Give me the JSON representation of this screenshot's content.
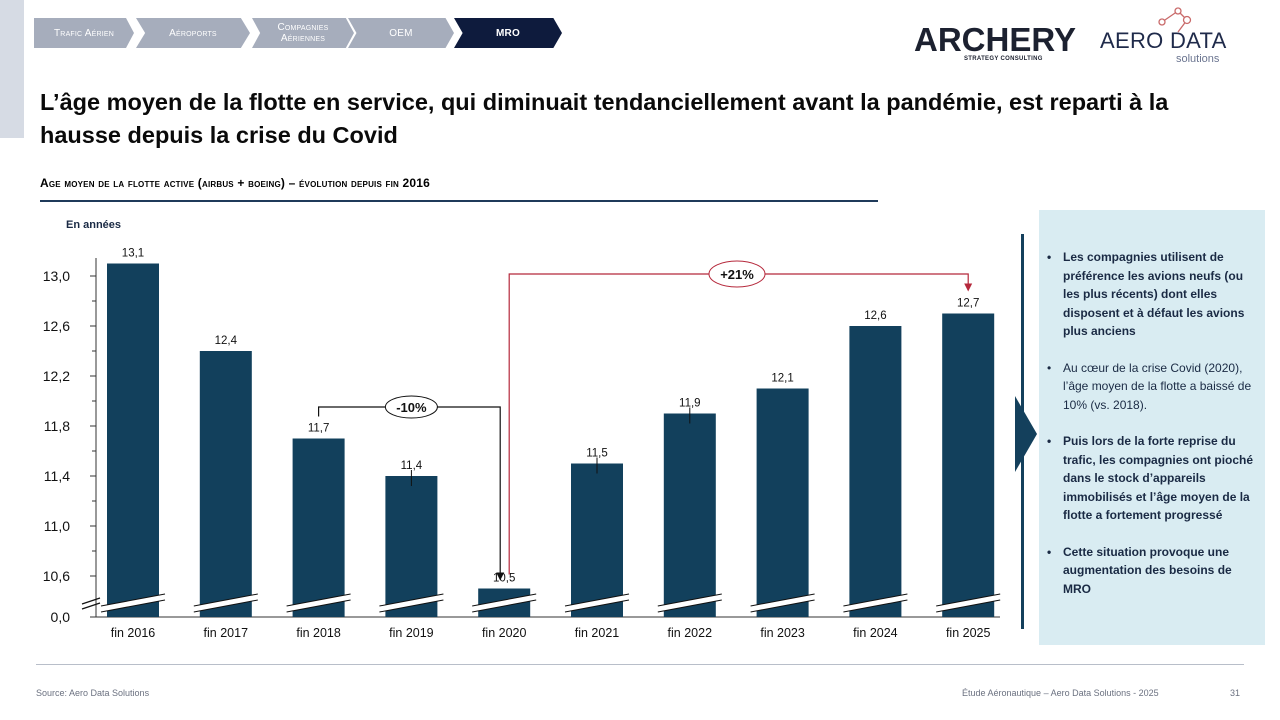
{
  "nav": {
    "items": [
      {
        "label": "Trafic Aérien",
        "active": false
      },
      {
        "label": "Aéroports",
        "active": false
      },
      {
        "label": "Compagnies Aériennes",
        "active": false
      },
      {
        "label": "OEM",
        "active": false
      },
      {
        "label": "MRO",
        "active": true
      }
    ]
  },
  "logos": {
    "archery": {
      "name": "ARCHERY",
      "tagline": "STRATEGY CONSULTING"
    },
    "ads": {
      "name": "AERO DATA",
      "tagline": "solutions"
    }
  },
  "title": "L’âge moyen de la flotte en service, qui diminuait tendanciellement avant la pandémie, est reparti à la hausse depuis la crise du Covid",
  "subtitle": "Age moyen de la flotte active (airbus + boeing) – évolution depuis fin 2016",
  "chart_data": {
    "type": "bar",
    "unit_label": "En années",
    "categories": [
      "fin 2016",
      "fin 2017",
      "fin 2018",
      "fin 2019",
      "fin 2020",
      "fin 2021",
      "fin 2022",
      "fin 2023",
      "fin 2024",
      "fin 2025"
    ],
    "values": [
      13.1,
      12.4,
      11.7,
      11.4,
      10.5,
      11.5,
      11.9,
      12.1,
      12.6,
      12.7
    ],
    "value_labels": [
      "13,1",
      "12,4",
      "11,7",
      "11,4",
      "10,5",
      "11,5",
      "11,9",
      "12,1",
      "12,6",
      "12,7"
    ],
    "y_ticks": [
      "0,0",
      "10,6",
      "11,0",
      "11,4",
      "11,8",
      "12,2",
      "12,6",
      "13,0"
    ],
    "y_tick_values": [
      0,
      10.6,
      11.0,
      11.4,
      11.8,
      12.2,
      12.6,
      13.0
    ],
    "ylim": [
      10.4,
      13.1
    ],
    "axis_break": true,
    "annotations": [
      {
        "label": "-10%",
        "from": "fin 2018",
        "to": "fin 2020"
      },
      {
        "label": "+21%",
        "from": "fin 2020",
        "to": "fin 2025"
      }
    ],
    "bar_color": "#12405c"
  },
  "panel": {
    "bullets": [
      {
        "text": "Les compagnies utilisent de préférence les avions neufs (ou les plus récents) dont elles disposent et à défaut les avions plus anciens",
        "bold": true
      },
      {
        "text": "Au cœur de la crise Covid (2020), l’âge moyen de la flotte a baissé de 10% (vs. 2018).",
        "bold": false
      },
      {
        "text": "Puis lors de la forte reprise du trafic, les compagnies ont pioché dans le stock d’appareils immobilisés et l’âge moyen de la flotte a fortement progressé",
        "bold": true
      },
      {
        "text": "Cette situation provoque une augmentation des besoins de MRO",
        "bold": true
      }
    ]
  },
  "footer": {
    "source": "Source: Aero Data Solutions",
    "study": "Étude Aéronautique – Aero Data Solutions - 2025",
    "page": "31"
  }
}
